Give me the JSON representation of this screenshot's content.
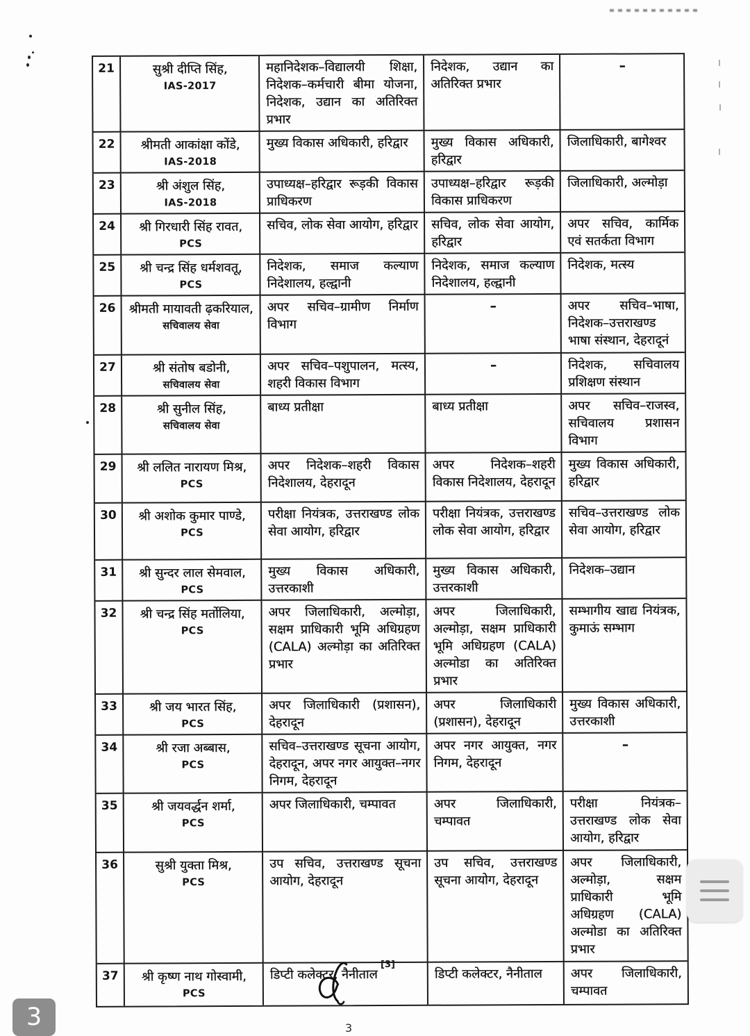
{
  "table": {
    "rows": [
      {
        "sno": "21",
        "name": "सुश्री दीप्ति सिंह,",
        "cadre": "IAS-2017",
        "postings": [
          "महानिदेशक–विद्यालयी शिक्षा, निदेशक–कर्मचारी बीमा योजना, निदेशक, उद्यान का अतिरिक्त प्रभार",
          "निदेशक, उद्यान का अतिरिक्त प्रभार",
          "–"
        ]
      },
      {
        "sno": "22",
        "name": "श्रीमती आकांक्षा कोंडे,",
        "cadre": "IAS-2018",
        "postings": [
          "मुख्य विकास अधिकारी, हरिद्वार",
          "मुख्य विकास अधिकारी, हरिद्वार",
          "जिलाधिकारी, बागेश्वर"
        ]
      },
      {
        "sno": "23",
        "name": "श्री अंशुल सिंह,",
        "cadre": "IAS-2018",
        "postings": [
          "उपाध्यक्ष–हरिद्वार रूड़की विकास प्राधिकरण",
          "उपाध्यक्ष–हरिद्वार रूड़की विकास प्राधिकरण",
          "जिलाधिकारी, अल्मोड़ा"
        ]
      },
      {
        "sno": "24",
        "name": "श्री गिरधारी सिंह रावत,",
        "cadre": "PCS",
        "postings": [
          "सचिव, लोक सेवा आयोग, हरिद्वार",
          "सचिव, लोक सेवा आयोग, हरिद्वार",
          "अपर सचिव, कार्मिक एवं सतर्कता विभाग"
        ]
      },
      {
        "sno": "25",
        "name": "श्री चन्द्र सिंह धर्मशवतू,",
        "cadre": "PCS",
        "postings": [
          "निदेशक, समाज कल्याण निदेशालय, हल्द्वानी",
          "निदेशक, समाज कल्याण निदेशालय, हल्द्वानी",
          "निदेशक, मत्स्य"
        ]
      },
      {
        "sno": "26",
        "name": "श्रीमती मायावती ढ़करियाल,",
        "cadre": "सचिवालय सेवा",
        "postings": [
          "अपर सचिव–ग्रामीण निर्माण विभाग",
          "–",
          "अपर सचिव–भाषा, निदेशक–उत्तराखण्ड भाषा संस्थान, देहरादूनं"
        ]
      },
      {
        "sno": "27",
        "name": "श्री संतोष बडोनी,",
        "cadre": "सचिवालय सेवा",
        "postings": [
          "अपर सचिव–पशुपालन, मत्स्य, शहरी विकास विभाग",
          "–",
          "निदेशक, सचिवालय प्रशिक्षण संस्थान"
        ]
      },
      {
        "sno": "28",
        "name": "श्री सुनील सिंह,",
        "cadre": "सचिवालय सेवा",
        "postings": [
          "बाध्य प्रतीक्षा",
          "बाध्य प्रतीक्षा",
          "अपर सचिव–राजस्व, सचिवालय प्रशासन विभाग"
        ]
      },
      {
        "sno": "29",
        "name": "श्री ललित नारायण मिश्र,",
        "cadre": "PCS",
        "postings": [
          "अपर निदेशक–शहरी विकास निदेशालय, देहरादून",
          "अपर निदेशक–शहरी विकास निदेशालय, देहरादून",
          "मुख्य विकास अधिकारी, हरिद्वार"
        ]
      },
      {
        "sno": "30",
        "name": "श्री अशोक कुमार पाण्डे,",
        "cadre": "PCS",
        "postings": [
          "परीक्षा नियंत्रक, उत्तराखण्ड लोक सेवा आयोग, हरिद्वार",
          "परीक्षा नियंत्रक, उत्तराखण्ड लोक सेवा आयोग, हरिद्वार",
          "सचिव–उत्तराखण्ड लोक सेवा आयोग, हरिद्वार"
        ]
      },
      {
        "sno": "31",
        "name": "श्री सुन्दर लाल सेमवाल,",
        "cadre": "PCS",
        "postings": [
          "मुख्य विकास अधिकारी, उत्तरकाशी",
          "मुख्य विकास अधिकारी, उत्तरकाशी",
          "निदेशक–उद्यान"
        ]
      },
      {
        "sno": "32",
        "name": "श्री चन्द्र सिंह मर्तोलिया,",
        "cadre": "PCS",
        "postings": [
          "अपर जिलाधिकारी, अल्मोड़ा, सक्षम प्राधिकारी भूमि अधिग्रहण (CALA) अल्मोड़ा का अतिरिक्त प्रभार",
          "अपर जिलाधिकारी, अल्मोड़ा, सक्षम प्राधिकारी भूमि अधिग्रहण (CALA) अल्मोडा का अतिरिक्त प्रभार",
          "सम्भागीय खाद्य नियंत्रक, कुमाऊं सम्भाग"
        ]
      },
      {
        "sno": "33",
        "name": "श्री जय भारत सिंह,",
        "cadre": "PCS",
        "postings": [
          "अपर जिलाधिकारी (प्रशासन), देहरादून",
          "अपर जिलाधिकारी (प्रशासन), देहरादून",
          "मुख्य विकास अधिकारी, उत्तरकाशी"
        ]
      },
      {
        "sno": "34",
        "name": "श्री रजा अब्बास,",
        "cadre": "PCS",
        "postings": [
          "सचिव–उत्तराखण्ड सूचना आयोग, देहरादून, अपर नगर आयुक्त–नगर निगम, देहरादून",
          "अपर नगर आयुक्त, नगर निगम, देहरादून",
          "–"
        ]
      },
      {
        "sno": "35",
        "name": "श्री जयवर्द्धन शर्मा,",
        "cadre": "PCS",
        "postings": [
          "अपर जिलाधिकारी, चम्पावत",
          "अपर जिलाधिकारी, चम्पावत",
          "परीक्षा नियंत्रक– उत्तराखण्ड लोक सेवा आयोग, हरिद्वार"
        ]
      },
      {
        "sno": "36",
        "name": "सुश्री युक्ता मिश्र,",
        "cadre": "PCS",
        "postings": [
          "उप सचिव, उत्तराखण्ड सूचना आयोग, देहरादून",
          "उप सचिव, उत्तराखण्ड सूचना आयोग, देहरादून",
          "अपर जिलाधिकारी, अल्मोड़ा, सक्षम प्राधिकारी भूमि अधिग्रहण (CALA) अल्मोडा का अतिरिक्त प्रभार"
        ]
      },
      {
        "sno": "37",
        "name": "श्री कृष्ण नाथ गोस्वामी,",
        "cadre": "PCS",
        "postings": [
          "डिप्टी कलेक्टर, नैनीताल",
          "डिप्टी कलेक्टर, नैनीताल",
          "अपर जिलाधिकारी, चम्पावत"
        ]
      }
    ]
  },
  "footer": {
    "annotation": "[3]",
    "page_number": "3",
    "page_badge": "3"
  }
}
